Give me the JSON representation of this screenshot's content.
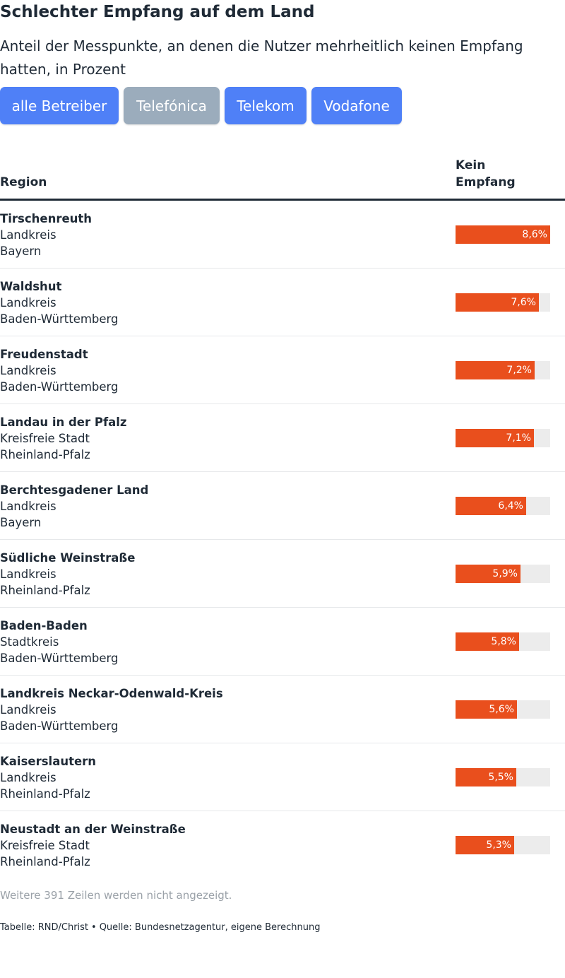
{
  "title": "Schlechter Empfang auf dem Land",
  "subtitle": "Anteil der Messpunkte, an denen die Nutzer mehrheitlich keinen Empfang hatten, in Prozent",
  "filters": [
    {
      "label": "alle Betreiber",
      "active": false
    },
    {
      "label": "Telefónica",
      "active": true
    },
    {
      "label": "Telekom",
      "active": false
    },
    {
      "label": "Vodafone",
      "active": false
    }
  ],
  "colors": {
    "bar": "#e94f1d",
    "track": "#ececec",
    "button": "#4f80f7",
    "button_active": "#9bacbc"
  },
  "table": {
    "col_region": "Region",
    "col_value": "Kein Empfang",
    "more_rows": "Weitere 391 Zeilen werden nicht angezeigt."
  },
  "chart_data": {
    "type": "bar",
    "xlim": [
      0,
      8.6
    ],
    "value_suffix": "%",
    "rows": [
      {
        "name": "Tirschenreuth",
        "type": "Landkreis",
        "state": "Bayern",
        "value": 8.6,
        "label": "8,6%"
      },
      {
        "name": "Waldshut",
        "type": "Landkreis",
        "state": "Baden-Württemberg",
        "value": 7.6,
        "label": "7,6%"
      },
      {
        "name": "Freudenstadt",
        "type": "Landkreis",
        "state": "Baden-Württemberg",
        "value": 7.2,
        "label": "7,2%"
      },
      {
        "name": "Landau in der Pfalz",
        "type": "Kreisfreie Stadt",
        "state": "Rheinland-Pfalz",
        "value": 7.1,
        "label": "7,1%"
      },
      {
        "name": "Berchtesgadener Land",
        "type": "Landkreis",
        "state": "Bayern",
        "value": 6.4,
        "label": "6,4%"
      },
      {
        "name": "Südliche Weinstraße",
        "type": "Landkreis",
        "state": "Rheinland-Pfalz",
        "value": 5.9,
        "label": "5,9%"
      },
      {
        "name": "Baden-Baden",
        "type": "Stadtkreis",
        "state": "Baden-Württemberg",
        "value": 5.8,
        "label": "5,8%"
      },
      {
        "name": "Landkreis Neckar-Odenwald-Kreis",
        "type": "Landkreis",
        "state": "Baden-Württemberg",
        "value": 5.6,
        "label": "5,6%"
      },
      {
        "name": "Kaiserslautern",
        "type": "Landkreis",
        "state": "Rheinland-Pfalz",
        "value": 5.5,
        "label": "5,5%"
      },
      {
        "name": "Neustadt an der Weinstraße",
        "type": "Kreisfreie Stadt",
        "state": "Rheinland-Pfalz",
        "value": 5.3,
        "label": "5,3%"
      }
    ]
  },
  "footer": {
    "table_credit": "Tabelle: RND/Christ",
    "separator": "•",
    "source": "Quelle: Bundesnetzagentur, eigene Berechnung"
  }
}
